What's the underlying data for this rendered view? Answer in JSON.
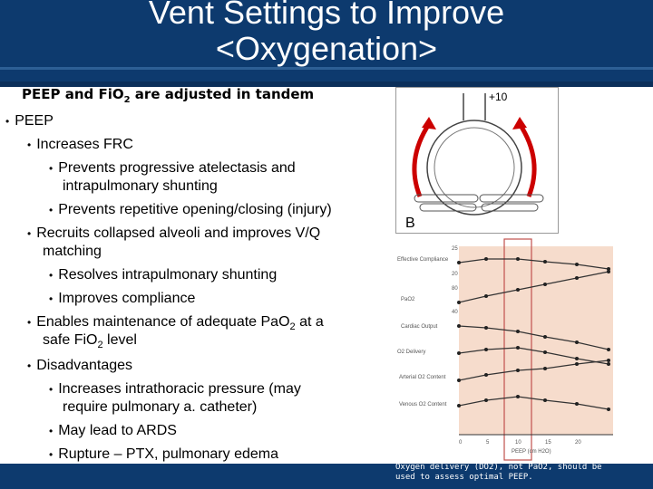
{
  "slide": {
    "title_line1": "Vent Settings to Improve",
    "title_line2": "<Oxygenation>",
    "subtitle_pre": "PEEP and FiO",
    "subtitle_sub": "2",
    "subtitle_post": " are adjusted in tandem"
  },
  "bullets": [
    "PEEP",
    "Increases FRC",
    "Prevents progressive atelectasis and",
    "intrapulmonary shunting",
    "Prevents repetitive opening/closing (injury)",
    "Recruits collapsed alveoli and improves V/Q",
    "matching",
    "Resolves intrapulmonary shunting",
    "Improves compliance",
    "Enables maintenance of adequate PaO",
    "2",
    " at a",
    "safe FiO",
    "2",
    " level",
    "Disadvantages",
    "Increases intrathoracic pressure (may",
    "require pulmonary a. catheter)",
    "May lead to ARDS",
    "Rupture – PTX, pulmonary edema"
  ],
  "figure_top": {
    "label_plus10": "+10",
    "label_b": "B"
  },
  "figure_chart": {
    "row_labels": [
      "Effective Compliance",
      "PaO2",
      "Cardiac Output",
      "O2 Delivery",
      "Arterial O2 Content",
      "Venous O2 Content"
    ],
    "y_ticks": [
      "25",
      "20",
      "80",
      "40"
    ],
    "x_ticks": [
      "0",
      "5",
      "10",
      "15",
      "20"
    ],
    "x_axis_label": "PEEP (cm H2O)",
    "highlight_col": "10"
  },
  "footer_note": "Oxygen delivery (DO2), not PaO2, should be used to assess optimal PEEP."
}
